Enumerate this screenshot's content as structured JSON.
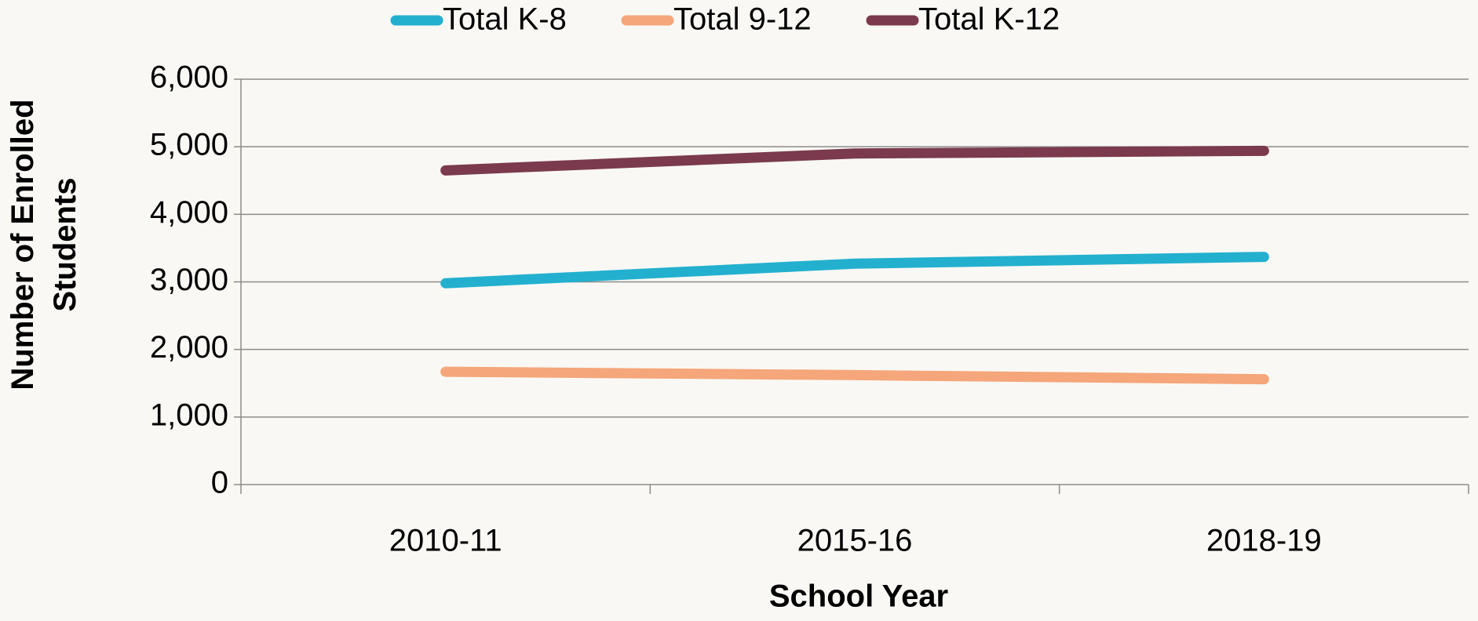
{
  "chart_data": {
    "type": "line",
    "x_label": "School Year",
    "y_label": "Number of Enrolled Students",
    "categories": [
      "2010-11",
      "2015-16",
      "2018-19"
    ],
    "series": [
      {
        "name": "Total K-8",
        "color": "#23b0cf",
        "values": [
          2980,
          3270,
          3370
        ]
      },
      {
        "name": "Total 9-12",
        "color": "#f5a67a",
        "values": [
          1670,
          1620,
          1560
        ]
      },
      {
        "name": "Total K-12",
        "color": "#7b3a4d",
        "values": [
          4650,
          4900,
          4940
        ]
      }
    ],
    "ylim": [
      0,
      6000
    ],
    "yticks": [
      0,
      {
        "value": 1000,
        "label": "1,000"
      },
      {
        "value": 2000,
        "label": "2,000"
      },
      {
        "value": 3000,
        "label": "3,000"
      },
      {
        "value": 4000,
        "label": "4,000"
      },
      {
        "value": 5000,
        "label": "5,000"
      },
      {
        "value": 6000,
        "label": "6,000"
      }
    ],
    "grid": true,
    "legend": "top"
  }
}
